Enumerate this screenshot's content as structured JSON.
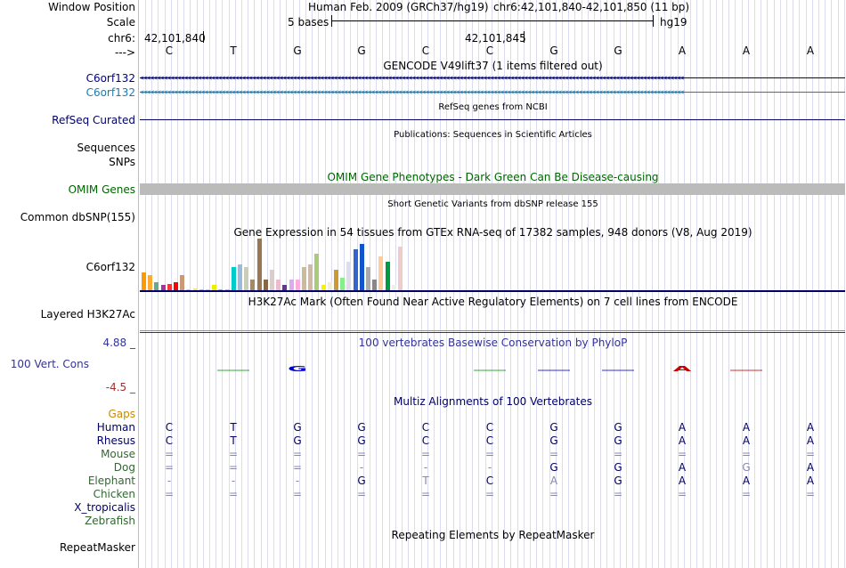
{
  "header": {
    "window_position_label": "Window Position",
    "scale_label": "Scale",
    "chrom_label": "chr6:",
    "strand_label": "--->",
    "assembly_text": "Human Feb. 2009 (GRCh37/hg19)",
    "coordinates_text": "chr6:42,101,840-42,101,850 (11 bp)",
    "scale_text": "5 bases",
    "db_text": "hg19",
    "pos1": "42,101,840",
    "pos2": "42,101,845"
  },
  "bases": [
    "C",
    "T",
    "G",
    "G",
    "C",
    "C",
    "G",
    "G",
    "A",
    "A",
    "A"
  ],
  "tracks": {
    "gencode_title": "GENCODE V49lift37 (1 items filtered out)",
    "gencode_items": [
      "C6orf132",
      "C6orf132"
    ],
    "refseq_label": "RefSeq Curated",
    "refseq_title": "RefSeq genes from NCBI",
    "sequences_label": "Sequences",
    "sequences_title": "Publications: Sequences in Scientific Articles",
    "snps_label": "SNPs",
    "omim_title": "OMIM Gene Phenotypes - Dark Green Can Be Disease-causing",
    "omim_label": "OMIM Genes",
    "dbsnp_title": "Short Genetic Variants from dbSNP release 155",
    "dbsnp_label": "Common dbSNP(155)",
    "gtex_title": "Gene Expression in 54 tissues from GTEx RNA-seq of 17382 samples, 948 donors (V8, Aug 2019)",
    "gtex_label": "C6orf132",
    "h3k27_title": "H3K27Ac Mark (Often Found Near Active Regulatory Elements) on 7 cell lines from ENCODE",
    "h3k27_label": "Layered H3K27Ac",
    "phylop_title": "100 vertebrates Basewise Conservation by PhyloP",
    "phylop_label": "100 Vert. Cons",
    "phylop_max": "4.88 _",
    "phylop_min": "-4.5 _",
    "multiz_title": "Multiz Alignments of 100 Vertebrates",
    "repeat_title": "Repeating Elements by RepeatMasker",
    "repeat_label": "RepeatMasker"
  },
  "gtex_values": [
    {
      "v": 0.35,
      "c": "#ff9900"
    },
    {
      "v": 0.3,
      "c": "#ffaa33"
    },
    {
      "v": 0.15,
      "c": "#66aa88"
    },
    {
      "v": 0.1,
      "c": "#aa3399"
    },
    {
      "v": 0.12,
      "c": "#ff3333"
    },
    {
      "v": 0.15,
      "c": "#ff0000"
    },
    {
      "v": 0.3,
      "c": "#cc9977"
    },
    {
      "v": 0.02,
      "c": "#ffcc00"
    },
    {
      "v": 0.03,
      "c": "#ffdd66"
    },
    {
      "v": 0.02,
      "c": "#cccc33"
    },
    {
      "v": 0.02,
      "c": "#ccccaa"
    },
    {
      "v": 0.1,
      "c": "#eeee00"
    },
    {
      "v": 0.02,
      "c": "#aaaaaa"
    },
    {
      "v": 0.02,
      "c": "#bbbbbb"
    },
    {
      "v": 0.45,
      "c": "#00cccc"
    },
    {
      "v": 0.5,
      "c": "#99bbdd"
    },
    {
      "v": 0.45,
      "c": "#ccccbb"
    },
    {
      "v": 0.2,
      "c": "#aa8866"
    },
    {
      "v": 1.0,
      "c": "#997755"
    },
    {
      "v": 0.2,
      "c": "#886644"
    },
    {
      "v": 0.4,
      "c": "#ddcccc"
    },
    {
      "v": 0.2,
      "c": "#eebbcc"
    },
    {
      "v": 0.1,
      "c": "#663399"
    },
    {
      "v": 0.2,
      "c": "#ddaaee"
    },
    {
      "v": 0.2,
      "c": "#ffaadd"
    },
    {
      "v": 0.45,
      "c": "#ccbb99"
    },
    {
      "v": 0.5,
      "c": "#ccbbaa"
    },
    {
      "v": 0.7,
      "c": "#aacc77"
    },
    {
      "v": 0.1,
      "c": "#ffee00"
    },
    {
      "v": 0.15,
      "c": "#eeeedd"
    },
    {
      "v": 0.4,
      "c": "#cc9933"
    },
    {
      "v": 0.25,
      "c": "#88ee88"
    },
    {
      "v": 0.55,
      "c": "#ddddee"
    },
    {
      "v": 0.8,
      "c": "#3366cc"
    },
    {
      "v": 0.9,
      "c": "#1155cc"
    },
    {
      "v": 0.45,
      "c": "#aaaaaa"
    },
    {
      "v": 0.2,
      "c": "#888888"
    },
    {
      "v": 0.65,
      "c": "#ffcc99"
    },
    {
      "v": 0.55,
      "c": "#009944"
    },
    {
      "v": 0.1,
      "c": "#eeeeee"
    },
    {
      "v": 0.85,
      "c": "#eecccc"
    }
  ],
  "phylop": [
    {
      "base": 1,
      "type": "dash",
      "color": "#33aa33"
    },
    {
      "base": 2,
      "type": "G",
      "color": "#0000cc"
    },
    {
      "base": 5,
      "type": "dash",
      "color": "#33aa33"
    },
    {
      "base": 6,
      "type": "dash",
      "color": "#3333cc"
    },
    {
      "base": 7,
      "type": "dash",
      "color": "#3333cc"
    },
    {
      "base": 8,
      "type": "A",
      "color": "#cc0000"
    },
    {
      "base": 9,
      "type": "dash",
      "color": "#cc3333"
    }
  ],
  "species": [
    {
      "name": "Gaps",
      "color": "#cc8800",
      "cells": []
    },
    {
      "name": "Human",
      "color": "#000066",
      "cells": [
        "C",
        "T",
        "G",
        "G",
        "C",
        "C",
        "G",
        "G",
        "A",
        "A",
        "A"
      ]
    },
    {
      "name": "Rhesus",
      "color": "#000066",
      "cells": [
        "C",
        "T",
        "G",
        "G",
        "C",
        "C",
        "G",
        "G",
        "A",
        "A",
        "A"
      ]
    },
    {
      "name": "Mouse",
      "color": "#336633",
      "cells": [
        "=",
        "=",
        "=",
        "=",
        "=",
        "=",
        "=",
        "=",
        "=",
        "=",
        "="
      ]
    },
    {
      "name": "Dog",
      "color": "#336633",
      "cells": [
        "=",
        "=",
        "=",
        "-",
        "-",
        "-",
        "G",
        "G",
        "A",
        "G",
        "A"
      ]
    },
    {
      "name": "Elephant",
      "color": "#336633",
      "cells": [
        "-",
        "-",
        "-",
        "G",
        "T",
        "C",
        "A",
        "G",
        "A",
        "A",
        "A"
      ]
    },
    {
      "name": "Chicken",
      "color": "#336633",
      "cells": [
        "=",
        "=",
        "=",
        "=",
        "=",
        "=",
        "=",
        "=",
        "=",
        "=",
        "="
      ]
    },
    {
      "name": "X_tropicalis",
      "color": "#000066",
      "cells": []
    },
    {
      "name": "Zebrafish",
      "color": "#336633",
      "cells": []
    }
  ],
  "colors": {
    "navy": "#000066",
    "gencode_1": "#000080",
    "gencode_2": "#1a7bb0",
    "omim_green": "#006600",
    "omim_bar": "#bbbbbb",
    "grid": "#dbdbf2"
  }
}
